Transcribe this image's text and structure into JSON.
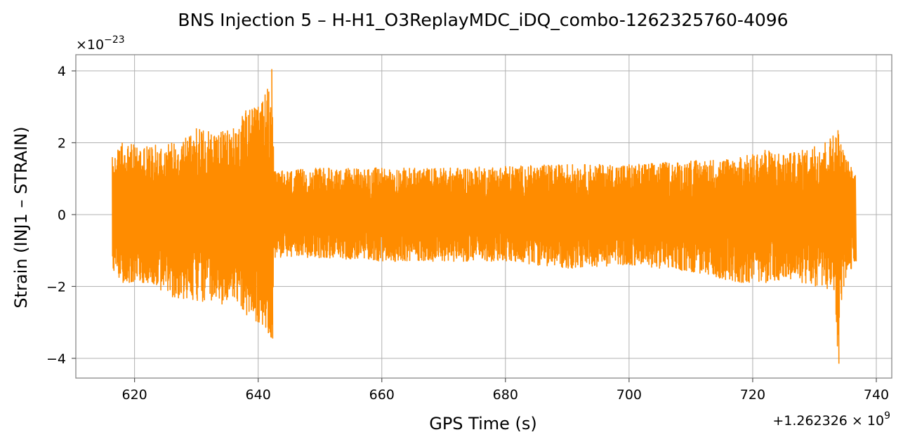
{
  "chart_data": {
    "type": "line",
    "title": "BNS Injection 5 – H-H1_O3ReplayMDC_iDQ_combo-1262325760-4096",
    "xlabel": "GPS Time (s)",
    "ylabel": "Strain (INJ1 – STRAIN)",
    "x_offset_label": "+1.262326 × 10",
    "x_offset_exponent": "9",
    "y_multiplier_label": "×10",
    "y_multiplier_exponent": "−23",
    "xlim": [
      610.5,
      742.5
    ],
    "ylim": [
      -4.55,
      4.45
    ],
    "x_ticks": [
      620,
      640,
      660,
      680,
      700,
      720,
      740
    ],
    "x_tick_labels": [
      "620",
      "640",
      "660",
      "680",
      "700",
      "720",
      "740"
    ],
    "y_ticks": [
      -4,
      -2,
      0,
      2,
      4
    ],
    "y_tick_labels": [
      "−4",
      "−2",
      "0",
      "2",
      "4"
    ],
    "grid": true,
    "series": [
      {
        "color": "#ff8c00",
        "x_range": [
          616.4,
          736.6
        ],
        "envelope": [
          {
            "x": 616.4,
            "max": 1.6,
            "min": -1.5
          },
          {
            "x": 618,
            "max": 2.0,
            "min": -1.9
          },
          {
            "x": 622,
            "max": 1.9,
            "min": -1.9
          },
          {
            "x": 626,
            "max": 2.0,
            "min": -2.3
          },
          {
            "x": 630,
            "max": 2.4,
            "min": -2.4
          },
          {
            "x": 634,
            "max": 2.3,
            "min": -2.5
          },
          {
            "x": 636,
            "max": 2.4,
            "min": -2.3
          },
          {
            "x": 638,
            "max": 2.9,
            "min": -2.8
          },
          {
            "x": 640,
            "max": 3.0,
            "min": -3.0
          },
          {
            "x": 641.5,
            "max": 3.5,
            "min": -3.3
          },
          {
            "x": 642.2,
            "max": 4.05,
            "min": -3.45
          },
          {
            "x": 642.6,
            "max": 1.2,
            "min": -1.2
          },
          {
            "x": 650,
            "max": 1.3,
            "min": -1.2
          },
          {
            "x": 660,
            "max": 1.3,
            "min": -1.3
          },
          {
            "x": 670,
            "max": 1.3,
            "min": -1.3
          },
          {
            "x": 680,
            "max": 1.35,
            "min": -1.3
          },
          {
            "x": 690,
            "max": 1.4,
            "min": -1.5
          },
          {
            "x": 700,
            "max": 1.4,
            "min": -1.4
          },
          {
            "x": 710,
            "max": 1.5,
            "min": -1.6
          },
          {
            "x": 718,
            "max": 1.6,
            "min": -1.9
          },
          {
            "x": 722,
            "max": 1.8,
            "min": -1.9
          },
          {
            "x": 726,
            "max": 1.7,
            "min": -1.8
          },
          {
            "x": 730,
            "max": 1.9,
            "min": -2.0
          },
          {
            "x": 733,
            "max": 2.2,
            "min": -2.1
          },
          {
            "x": 733.8,
            "max": 2.35,
            "min": -4.15
          },
          {
            "x": 734.6,
            "max": 1.8,
            "min": -2.0
          },
          {
            "x": 736.6,
            "max": 1.1,
            "min": -1.3
          }
        ]
      }
    ]
  }
}
